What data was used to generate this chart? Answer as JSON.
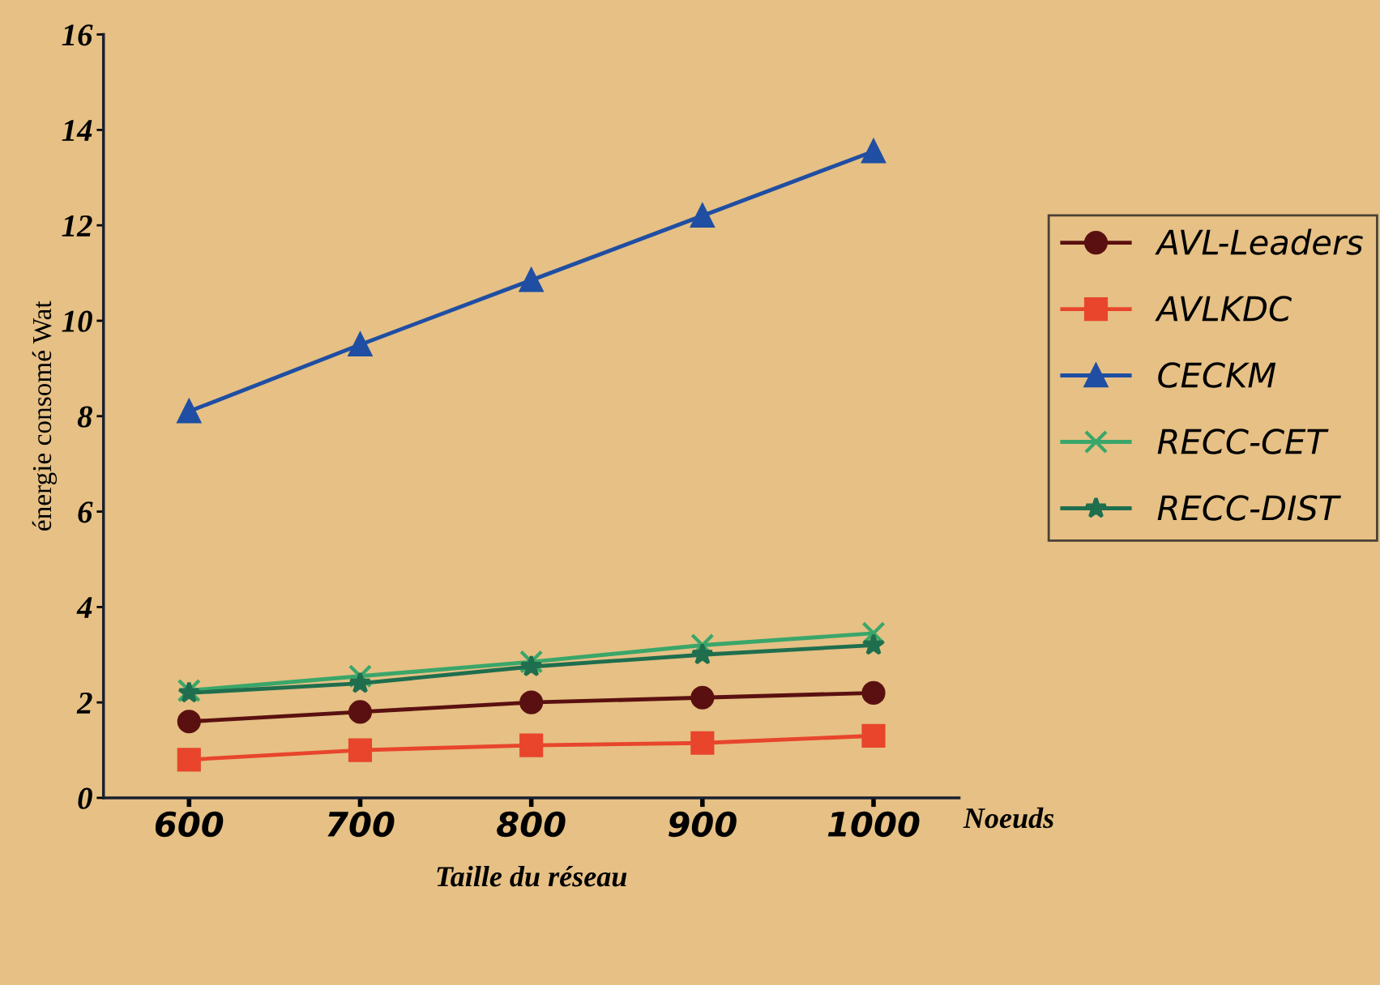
{
  "chart_data": {
    "type": "line",
    "xlabel": "Taille du réseau",
    "ylabel": "énergie consomé Wat",
    "annotations": [
      "Noeuds"
    ],
    "x": [
      600,
      700,
      800,
      900,
      1000
    ],
    "xlim": [
      550,
      1050
    ],
    "xticks": [
      600,
      700,
      800,
      900,
      1000
    ],
    "ylim": [
      0,
      16
    ],
    "yticks": [
      0,
      2,
      4,
      6,
      8,
      10,
      12,
      14,
      16
    ],
    "grid": false,
    "legend": "right",
    "series": [
      {
        "name": "AVL-Leaders",
        "color": "#5a1010",
        "marker": "circle",
        "values": [
          1.6,
          1.8,
          2.0,
          2.1,
          2.2
        ]
      },
      {
        "name": "AVLKDC",
        "color": "#e8452c",
        "marker": "square",
        "values": [
          0.8,
          1.0,
          1.1,
          1.15,
          1.3
        ]
      },
      {
        "name": "CECKM",
        "color": "#1f4ea3",
        "marker": "triangle",
        "values": [
          8.1,
          9.5,
          10.85,
          12.2,
          13.55
        ]
      },
      {
        "name": "RECC-CET",
        "color": "#3aa66a",
        "marker": "cross",
        "values": [
          2.25,
          2.55,
          2.85,
          3.2,
          3.45
        ]
      },
      {
        "name": "RECC-DIST",
        "color": "#1f6e4e",
        "marker": "star",
        "values": [
          2.2,
          2.4,
          2.75,
          3.0,
          3.2
        ]
      }
    ]
  }
}
